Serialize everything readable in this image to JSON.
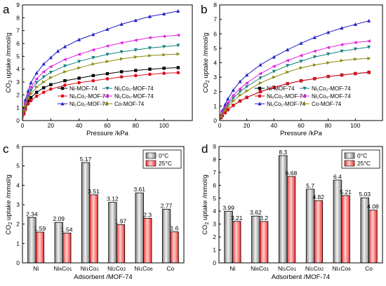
{
  "chart_data": [
    {
      "panel": "a",
      "type": "line",
      "xlabel": "Pressure /kPa",
      "ylabel": "CO2 uptake /mmol/g",
      "xlim": [
        0,
        120
      ],
      "ylim": [
        0,
        9
      ],
      "xticks": [
        0,
        20,
        40,
        60,
        80,
        100
      ],
      "yticks": [
        0,
        1,
        2,
        3,
        4,
        5,
        6,
        7,
        8,
        9
      ],
      "grid": false,
      "legend_position": "bottom-right, two columns",
      "legend_labels": [
        "Ni-MOF-74",
        "Ni₁Co₂-MOF-74",
        "Ni₆Co₁-MOF-74",
        "Ni₁Co₆-MOF-74",
        "Ni₁Co₁-MOF-74",
        "Co-MOF-74"
      ],
      "series": [
        {
          "name": "Ni-MOF-74",
          "color": "#000000",
          "marker": "square",
          "points": [
            [
              0,
              0
            ],
            [
              1,
              0.6
            ],
            [
              2,
              1.0
            ],
            [
              4,
              1.55
            ],
            [
              6,
              1.8
            ],
            [
              10,
              2.2
            ],
            [
              15,
              2.55
            ],
            [
              20,
              2.8
            ],
            [
              30,
              3.1
            ],
            [
              40,
              3.3
            ],
            [
              50,
              3.5
            ],
            [
              60,
              3.65
            ],
            [
              70,
              3.8
            ],
            [
              80,
              3.9
            ],
            [
              90,
              4.0
            ],
            [
              100,
              4.07
            ],
            [
              110,
              4.12
            ]
          ]
        },
        {
          "name": "Ni₆Co₁-MOF-74",
          "color": "#e3101e",
          "marker": "circle",
          "points": [
            [
              0,
              0
            ],
            [
              1,
              0.5
            ],
            [
              2,
              0.85
            ],
            [
              4,
              1.3
            ],
            [
              6,
              1.55
            ],
            [
              10,
              1.9
            ],
            [
              15,
              2.2
            ],
            [
              20,
              2.45
            ],
            [
              30,
              2.75
            ],
            [
              40,
              2.95
            ],
            [
              50,
              3.1
            ],
            [
              60,
              3.25
            ],
            [
              70,
              3.4
            ],
            [
              80,
              3.5
            ],
            [
              90,
              3.6
            ],
            [
              100,
              3.68
            ],
            [
              110,
              3.73
            ]
          ]
        },
        {
          "name": "Ni₁Co₁-MOF-74",
          "color": "#1f1fc8",
          "marker": "triangle-up",
          "points": [
            [
              0,
              0
            ],
            [
              1,
              1.0
            ],
            [
              2,
              1.6
            ],
            [
              4,
              2.3
            ],
            [
              6,
              2.95
            ],
            [
              10,
              3.7
            ],
            [
              15,
              4.4
            ],
            [
              20,
              4.9
            ],
            [
              25,
              5.4
            ],
            [
              30,
              5.75
            ],
            [
              40,
              6.3
            ],
            [
              50,
              6.7
            ],
            [
              60,
              7.1
            ],
            [
              70,
              7.5
            ],
            [
              80,
              7.8
            ],
            [
              90,
              8.1
            ],
            [
              100,
              8.3
            ],
            [
              110,
              8.52
            ]
          ]
        },
        {
          "name": "Ni₁Co₂-MOF-74",
          "color": "#1a7f7f",
          "marker": "triangle-down",
          "points": [
            [
              0,
              0
            ],
            [
              1,
              0.8
            ],
            [
              2,
              1.25
            ],
            [
              4,
              1.9
            ],
            [
              6,
              2.35
            ],
            [
              10,
              2.95
            ],
            [
              15,
              3.4
            ],
            [
              20,
              3.75
            ],
            [
              30,
              4.25
            ],
            [
              40,
              4.6
            ],
            [
              50,
              4.9
            ],
            [
              60,
              5.15
            ],
            [
              70,
              5.35
            ],
            [
              80,
              5.5
            ],
            [
              90,
              5.65
            ],
            [
              100,
              5.75
            ],
            [
              110,
              5.85
            ]
          ]
        },
        {
          "name": "Ni₁Co₆-MOF-74",
          "color": "#e020e0",
          "marker": "triangle-left",
          "points": [
            [
              0,
              0
            ],
            [
              1,
              0.9
            ],
            [
              2,
              1.4
            ],
            [
              4,
              2.05
            ],
            [
              6,
              2.6
            ],
            [
              10,
              3.25
            ],
            [
              15,
              3.8
            ],
            [
              20,
              4.2
            ],
            [
              30,
              4.75
            ],
            [
              40,
              5.15
            ],
            [
              50,
              5.5
            ],
            [
              60,
              5.8
            ],
            [
              70,
              6.05
            ],
            [
              80,
              6.25
            ],
            [
              90,
              6.45
            ],
            [
              100,
              6.55
            ],
            [
              110,
              6.65
            ]
          ]
        },
        {
          "name": "Co-MOF-74",
          "color": "#8a8a10",
          "marker": "triangle-right",
          "points": [
            [
              0,
              0
            ],
            [
              1,
              0.7
            ],
            [
              2,
              1.1
            ],
            [
              4,
              1.7
            ],
            [
              6,
              2.1
            ],
            [
              10,
              2.6
            ],
            [
              15,
              3.0
            ],
            [
              20,
              3.35
            ],
            [
              30,
              3.8
            ],
            [
              40,
              4.1
            ],
            [
              50,
              4.4
            ],
            [
              60,
              4.6
            ],
            [
              70,
              4.8
            ],
            [
              80,
              4.95
            ],
            [
              90,
              5.05
            ],
            [
              100,
              5.12
            ],
            [
              110,
              5.18
            ]
          ]
        }
      ]
    },
    {
      "panel": "b",
      "type": "line",
      "xlabel": "Pressure /kPa",
      "ylabel": "CO2 uptake /mmol/g",
      "xlim": [
        0,
        120
      ],
      "ylim": [
        0,
        8
      ],
      "xticks": [
        0,
        20,
        40,
        60,
        80,
        100
      ],
      "yticks": [
        0,
        1,
        2,
        3,
        4,
        5,
        6,
        7,
        8
      ],
      "grid": false,
      "legend_position": "bottom-right, two columns",
      "legend_labels": [
        "Ni-MOF-74",
        "Ni₁Co₂-MOF-74",
        "Ni₆Co₁-MOF-74",
        "Ni₁Co₆-MOF-74",
        "Ni₁Co₁-MOF-74",
        "Co-MOF-74"
      ],
      "series": [
        {
          "name": "Ni-MOF-74",
          "color": "#000000",
          "marker": "square",
          "points": [
            [
              0,
              0
            ],
            [
              1,
              0.2
            ],
            [
              2,
              0.35
            ],
            [
              4,
              0.55
            ],
            [
              6,
              0.75
            ],
            [
              10,
              1.05
            ],
            [
              15,
              1.35
            ],
            [
              20,
              1.6
            ],
            [
              30,
              2.0
            ],
            [
              40,
              2.3
            ],
            [
              50,
              2.55
            ],
            [
              60,
              2.75
            ],
            [
              70,
              2.9
            ],
            [
              80,
              3.05
            ],
            [
              90,
              3.15
            ],
            [
              100,
              3.25
            ],
            [
              110,
              3.33
            ]
          ]
        },
        {
          "name": "Ni₆Co₁-MOF-74",
          "color": "#e3101e",
          "marker": "circle",
          "points": [
            [
              0,
              0
            ],
            [
              1,
              0.2
            ],
            [
              2,
              0.35
            ],
            [
              4,
              0.55
            ],
            [
              6,
              0.75
            ],
            [
              10,
              1.05
            ],
            [
              15,
              1.35
            ],
            [
              20,
              1.6
            ],
            [
              30,
              2.0
            ],
            [
              40,
              2.3
            ],
            [
              50,
              2.55
            ],
            [
              60,
              2.75
            ],
            [
              70,
              2.9
            ],
            [
              80,
              3.05
            ],
            [
              90,
              3.15
            ],
            [
              100,
              3.25
            ],
            [
              110,
              3.35
            ]
          ]
        },
        {
          "name": "Ni₁Co₁-MOF-74",
          "color": "#1f1fc8",
          "marker": "triangle-up",
          "points": [
            [
              0,
              0
            ],
            [
              1,
              0.4
            ],
            [
              2,
              0.7
            ],
            [
              4,
              1.1
            ],
            [
              6,
              1.5
            ],
            [
              10,
              2.1
            ],
            [
              15,
              2.7
            ],
            [
              20,
              3.15
            ],
            [
              30,
              3.85
            ],
            [
              40,
              4.4
            ],
            [
              50,
              4.9
            ],
            [
              60,
              5.35
            ],
            [
              70,
              5.75
            ],
            [
              80,
              6.1
            ],
            [
              90,
              6.4
            ],
            [
              100,
              6.65
            ],
            [
              110,
              6.9
            ]
          ]
        },
        {
          "name": "Ni₁Co₂-MOF-74",
          "color": "#1a7f7f",
          "marker": "triangle-down",
          "points": [
            [
              0,
              0
            ],
            [
              1,
              0.3
            ],
            [
              2,
              0.5
            ],
            [
              4,
              0.85
            ],
            [
              6,
              1.1
            ],
            [
              10,
              1.55
            ],
            [
              15,
              2.0
            ],
            [
              20,
              2.35
            ],
            [
              30,
              2.95
            ],
            [
              40,
              3.4
            ],
            [
              50,
              3.8
            ],
            [
              60,
              4.1
            ],
            [
              70,
              4.4
            ],
            [
              80,
              4.6
            ],
            [
              90,
              4.8
            ],
            [
              100,
              4.95
            ],
            [
              110,
              5.08
            ]
          ]
        },
        {
          "name": "Ni₁Co₆-MOF-74",
          "color": "#e020e0",
          "marker": "triangle-left",
          "points": [
            [
              0,
              0
            ],
            [
              1,
              0.35
            ],
            [
              2,
              0.6
            ],
            [
              4,
              0.95
            ],
            [
              6,
              1.25
            ],
            [
              10,
              1.75
            ],
            [
              15,
              2.2
            ],
            [
              20,
              2.6
            ],
            [
              30,
              3.25
            ],
            [
              40,
              3.75
            ],
            [
              50,
              4.15
            ],
            [
              60,
              4.5
            ],
            [
              70,
              4.8
            ],
            [
              80,
              5.05
            ],
            [
              90,
              5.25
            ],
            [
              100,
              5.4
            ],
            [
              110,
              5.5
            ]
          ]
        },
        {
          "name": "Co-MOF-74",
          "color": "#8a8a10",
          "marker": "triangle-right",
          "points": [
            [
              0,
              0
            ],
            [
              1,
              0.25
            ],
            [
              2,
              0.45
            ],
            [
              4,
              0.7
            ],
            [
              6,
              0.95
            ],
            [
              10,
              1.35
            ],
            [
              15,
              1.75
            ],
            [
              20,
              2.05
            ],
            [
              30,
              2.6
            ],
            [
              40,
              3.0
            ],
            [
              50,
              3.35
            ],
            [
              60,
              3.65
            ],
            [
              70,
              3.85
            ],
            [
              80,
              4.0
            ],
            [
              90,
              4.15
            ],
            [
              100,
              4.25
            ],
            [
              110,
              4.3
            ]
          ]
        }
      ]
    },
    {
      "panel": "c",
      "type": "bar",
      "xlabel": "Adsorbent /MOF-74",
      "ylabel": "CO2 uptake /mmol/g",
      "ylim": [
        0,
        6
      ],
      "yticks": [
        0,
        1,
        2,
        3,
        4,
        5,
        6
      ],
      "categories": [
        "Ni",
        "Ni₆Co₁",
        "Ni₁Co₁",
        "Ni₁Co₂",
        "Ni₁Co₆",
        "Co"
      ],
      "legend_position": "top-right",
      "series": [
        {
          "name": "0°C",
          "color": "#808080",
          "values": [
            2.34,
            2.09,
            5.17,
            3.12,
            3.61,
            2.77
          ],
          "labels": [
            "2.34",
            "2.09",
            "5.17",
            "3.12",
            "3.61",
            "2.77"
          ]
        },
        {
          "name": "25°C",
          "color": "#ff3030",
          "values": [
            1.59,
            1.54,
            3.51,
            1.97,
            2.3,
            1.6
          ],
          "labels": [
            "1.59",
            "1.54",
            "3.51",
            "1.97",
            "2.3",
            "1.6"
          ]
        }
      ]
    },
    {
      "panel": "d",
      "type": "bar",
      "xlabel": "Adsorbent /MOF-74",
      "ylabel": "CO2 uptake /mmol/g",
      "ylim": [
        0,
        9
      ],
      "yticks": [
        0,
        1,
        2,
        3,
        4,
        5,
        6,
        7,
        8,
        9
      ],
      "categories": [
        "Ni",
        "Ni₆Co₁",
        "Ni₁Co₁",
        "Ni₁Co₂",
        "Ni₁Co₆",
        "Co"
      ],
      "legend_position": "top-right",
      "series": [
        {
          "name": "0°C",
          "color": "#808080",
          "values": [
            3.99,
            3.62,
            8.3,
            5.7,
            6.4,
            5.03
          ],
          "labels": [
            "3.99",
            "3.62",
            "8.3",
            "5.7",
            "6.4",
            "5.03"
          ]
        },
        {
          "name": "25°C",
          "color": "#ff3030",
          "values": [
            3.21,
            3.2,
            6.68,
            4.82,
            5.21,
            4.08
          ],
          "labels": [
            "3.21",
            "3.2",
            "6.68",
            "4.82",
            "5.21",
            "4.08"
          ]
        }
      ]
    }
  ]
}
